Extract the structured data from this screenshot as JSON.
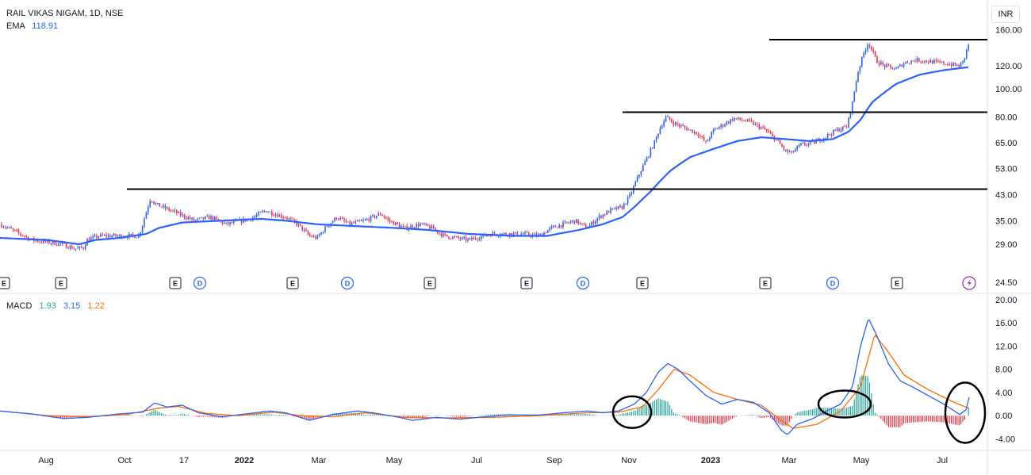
{
  "header": {
    "symbol_title": "RAIL VIKAS NIGAM, 1D, NSE",
    "ema_label": "EMA",
    "ema_value": "118.91",
    "macd_label": "MACD",
    "macd_hist_value": "1.93",
    "macd_line_value": "3.15",
    "macd_signal_value": "1.22"
  },
  "currency_button": "INR",
  "colors": {
    "up": "#2962ff",
    "down": "#f23645",
    "ema": "#2962ff",
    "macd_line": "#2962ff",
    "signal_line": "#ff6d00",
    "hist_pos": "#26a69a",
    "hist_neg": "#f23645",
    "resistance": "#000000",
    "annotation": "#000000",
    "event_dividend": "#2962ff",
    "event_earnings": "#131722",
    "event_split": "#9c27b0"
  },
  "chart_data": [
    {
      "type": "candlestick",
      "title": "RAIL VIKAS NIGAM, 1D, NSE",
      "y_scale": "log",
      "ylim": [
        24,
        170
      ],
      "y_ticks": [
        "160.00",
        "120.00",
        "100.00",
        "80.00",
        "65.00",
        "53.00",
        "43.00",
        "35.00",
        "29.00",
        "24.50"
      ],
      "x_ticks": [
        "Aug",
        "Oct",
        "17",
        "2022",
        "Mar",
        "May",
        "Jul",
        "Sep",
        "Nov",
        "2023",
        "Mar",
        "May",
        "Jul"
      ],
      "price_anchors": [
        [
          0,
          34
        ],
        [
          20,
          32
        ],
        [
          40,
          30
        ],
        [
          60,
          29.5
        ],
        [
          78,
          29
        ],
        [
          95,
          28
        ],
        [
          105,
          28.2
        ],
        [
          110,
          30
        ],
        [
          125,
          31
        ],
        [
          140,
          31
        ],
        [
          160,
          31
        ],
        [
          175,
          31
        ],
        [
          180,
          34
        ],
        [
          185,
          38
        ],
        [
          190,
          42
        ],
        [
          195,
          40
        ],
        [
          205,
          39
        ],
        [
          225,
          37
        ],
        [
          245,
          35
        ],
        [
          265,
          36
        ],
        [
          285,
          34
        ],
        [
          305,
          35
        ],
        [
          320,
          36
        ],
        [
          335,
          38
        ],
        [
          345,
          37
        ],
        [
          360,
          36
        ],
        [
          375,
          34
        ],
        [
          390,
          31
        ],
        [
          400,
          30.5
        ],
        [
          410,
          33
        ],
        [
          425,
          36
        ],
        [
          440,
          34
        ],
        [
          460,
          35
        ],
        [
          480,
          37
        ],
        [
          490,
          35
        ],
        [
          510,
          33
        ],
        [
          530,
          34
        ],
        [
          545,
          33
        ],
        [
          560,
          31
        ],
        [
          575,
          30.5
        ],
        [
          590,
          30
        ],
        [
          600,
          30.5
        ],
        [
          620,
          31.5
        ],
        [
          640,
          31.5
        ],
        [
          660,
          31.5
        ],
        [
          680,
          31
        ],
        [
          695,
          33
        ],
        [
          710,
          34
        ],
        [
          725,
          35
        ],
        [
          740,
          33
        ],
        [
          755,
          36
        ],
        [
          770,
          38
        ],
        [
          785,
          39
        ],
        [
          795,
          43
        ],
        [
          805,
          50
        ],
        [
          815,
          57
        ],
        [
          825,
          65
        ],
        [
          832,
          73
        ],
        [
          840,
          80
        ],
        [
          850,
          76
        ],
        [
          865,
          73
        ],
        [
          880,
          70
        ],
        [
          890,
          65
        ],
        [
          900,
          72
        ],
        [
          915,
          76
        ],
        [
          925,
          79
        ],
        [
          945,
          77
        ],
        [
          965,
          72
        ],
        [
          980,
          66
        ],
        [
          990,
          61
        ],
        [
          998,
          60
        ],
        [
          1010,
          64
        ],
        [
          1025,
          65
        ],
        [
          1040,
          68
        ],
        [
          1055,
          72
        ],
        [
          1068,
          74
        ],
        [
          1075,
          90
        ],
        [
          1082,
          115
        ],
        [
          1090,
          135
        ],
        [
          1095,
          145
        ],
        [
          1105,
          125
        ],
        [
          1115,
          120
        ],
        [
          1130,
          117
        ],
        [
          1140,
          123
        ],
        [
          1155,
          126
        ],
        [
          1175,
          124
        ],
        [
          1195,
          122
        ],
        [
          1210,
          120
        ],
        [
          1215,
          125
        ],
        [
          1222,
          145
        ]
      ],
      "ema_anchors": [
        [
          0,
          30.5
        ],
        [
          60,
          30
        ],
        [
          100,
          29
        ],
        [
          120,
          30
        ],
        [
          150,
          30.5
        ],
        [
          185,
          31.5
        ],
        [
          200,
          33
        ],
        [
          230,
          34.5
        ],
        [
          280,
          35
        ],
        [
          330,
          35.5
        ],
        [
          360,
          35
        ],
        [
          400,
          34
        ],
        [
          450,
          33.5
        ],
        [
          500,
          33
        ],
        [
          540,
          32.5
        ],
        [
          590,
          31.5
        ],
        [
          650,
          31
        ],
        [
          690,
          31
        ],
        [
          730,
          32.5
        ],
        [
          760,
          34
        ],
        [
          785,
          36
        ],
        [
          800,
          39
        ],
        [
          820,
          44
        ],
        [
          845,
          52
        ],
        [
          870,
          58
        ],
        [
          900,
          62
        ],
        [
          930,
          66
        ],
        [
          960,
          68
        ],
        [
          990,
          67
        ],
        [
          1020,
          66
        ],
        [
          1050,
          67
        ],
        [
          1070,
          71
        ],
        [
          1085,
          78
        ],
        [
          1100,
          90
        ],
        [
          1130,
          104
        ],
        [
          1160,
          112
        ],
        [
          1190,
          116
        ],
        [
          1222,
          118.91
        ]
      ],
      "resistance_levels": [
        {
          "price": 45,
          "x_start": 160,
          "x_end": 1245
        },
        {
          "price": 83,
          "x_start": 785,
          "x_end": 1245
        },
        {
          "price": 148,
          "x_start": 970,
          "x_end": 1245
        }
      ],
      "events": [
        {
          "type": "E",
          "x": 5
        },
        {
          "type": "E",
          "x": 77
        },
        {
          "type": "E",
          "x": 221
        },
        {
          "type": "D",
          "x": 252
        },
        {
          "type": "E",
          "x": 369
        },
        {
          "type": "D",
          "x": 438
        },
        {
          "type": "E",
          "x": 542
        },
        {
          "type": "E",
          "x": 664
        },
        {
          "type": "D",
          "x": 735
        },
        {
          "type": "E",
          "x": 810
        },
        {
          "type": "E",
          "x": 965
        },
        {
          "type": "D",
          "x": 1050
        },
        {
          "type": "E",
          "x": 1131
        },
        {
          "type": "S",
          "x": 1222
        }
      ]
    },
    {
      "type": "macd",
      "ylim": [
        -6,
        20
      ],
      "y_ticks": [
        "20.00",
        "16.00",
        "12.00",
        "8.00",
        "4.00",
        "0.00",
        "-4.00"
      ],
      "legend": [
        "1.93",
        "3.15",
        "1.22"
      ],
      "macd_anchors": [
        [
          0,
          0.8
        ],
        [
          40,
          0.3
        ],
        [
          80,
          -0.5
        ],
        [
          110,
          -0.3
        ],
        [
          150,
          0.3
        ],
        [
          180,
          0.6
        ],
        [
          195,
          2.2
        ],
        [
          210,
          1.5
        ],
        [
          230,
          1.8
        ],
        [
          250,
          0.5
        ],
        [
          280,
          -0.2
        ],
        [
          310,
          0.3
        ],
        [
          340,
          0.8
        ],
        [
          360,
          0.5
        ],
        [
          390,
          -0.8
        ],
        [
          420,
          0.2
        ],
        [
          450,
          0.8
        ],
        [
          470,
          0.5
        ],
        [
          500,
          -0.2
        ],
        [
          520,
          -0.8
        ],
        [
          550,
          -0.3
        ],
        [
          580,
          -0.6
        ],
        [
          610,
          -0.2
        ],
        [
          640,
          0.1
        ],
        [
          680,
          0.1
        ],
        [
          710,
          0.5
        ],
        [
          740,
          0.8
        ],
        [
          760,
          0.5
        ],
        [
          780,
          0.8
        ],
        [
          800,
          2.0
        ],
        [
          815,
          4.0
        ],
        [
          830,
          7.5
        ],
        [
          842,
          9.0
        ],
        [
          855,
          8.0
        ],
        [
          870,
          6.0
        ],
        [
          890,
          3.5
        ],
        [
          910,
          2.0
        ],
        [
          930,
          2.8
        ],
        [
          950,
          2.3
        ],
        [
          970,
          0.5
        ],
        [
          985,
          -2.5
        ],
        [
          993,
          -3.3
        ],
        [
          1005,
          -1.5
        ],
        [
          1025,
          -0.5
        ],
        [
          1045,
          1.0
        ],
        [
          1060,
          2.0
        ],
        [
          1075,
          5.0
        ],
        [
          1085,
          12.0
        ],
        [
          1095,
          16.8
        ],
        [
          1105,
          14.0
        ],
        [
          1120,
          9.0
        ],
        [
          1135,
          6.0
        ],
        [
          1150,
          5.0
        ],
        [
          1170,
          3.5
        ],
        [
          1190,
          2.0
        ],
        [
          1210,
          0.2
        ],
        [
          1218,
          1.0
        ],
        [
          1222,
          3.15
        ]
      ],
      "signal_anchors": [
        [
          0,
          0.8
        ],
        [
          60,
          0.0
        ],
        [
          110,
          -0.2
        ],
        [
          160,
          0.2
        ],
        [
          200,
          1.3
        ],
        [
          225,
          1.6
        ],
        [
          260,
          0.4
        ],
        [
          300,
          0.0
        ],
        [
          345,
          0.6
        ],
        [
          380,
          0.0
        ],
        [
          420,
          -0.2
        ],
        [
          460,
          0.5
        ],
        [
          510,
          -0.3
        ],
        [
          560,
          -0.4
        ],
        [
          620,
          -0.3
        ],
        [
          680,
          0.0
        ],
        [
          740,
          0.5
        ],
        [
          780,
          0.6
        ],
        [
          810,
          1.5
        ],
        [
          830,
          4.5
        ],
        [
          850,
          8.0
        ],
        [
          870,
          7.0
        ],
        [
          900,
          4.0
        ],
        [
          930,
          2.8
        ],
        [
          960,
          1.8
        ],
        [
          985,
          -0.8
        ],
        [
          1000,
          -2.2
        ],
        [
          1030,
          -1.5
        ],
        [
          1060,
          0.8
        ],
        [
          1085,
          5.0
        ],
        [
          1103,
          14.0
        ],
        [
          1120,
          11.0
        ],
        [
          1140,
          7.0
        ],
        [
          1170,
          4.5
        ],
        [
          1200,
          2.5
        ],
        [
          1222,
          1.22
        ]
      ],
      "annotation_ellipses": [
        {
          "x": 797,
          "y": 0.6,
          "rx": 24,
          "ry": 20
        },
        {
          "x": 1065,
          "y": 2.0,
          "rx": 33,
          "ry": 17
        },
        {
          "x": 1217,
          "y": 0.5,
          "rx": 25,
          "ry": 38
        }
      ]
    }
  ]
}
